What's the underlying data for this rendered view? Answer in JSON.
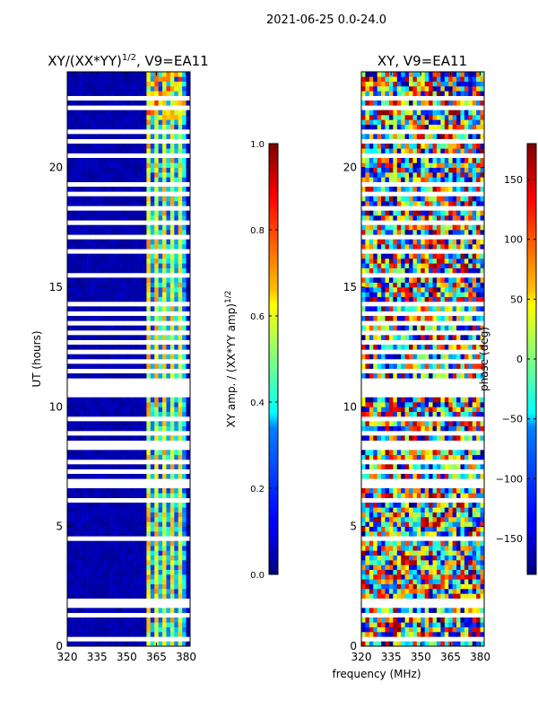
{
  "figure": {
    "suptitle": "2021-06-25 0.0-24.0",
    "shared_xlabel": "frequency (MHz)"
  },
  "chart_data": [
    {
      "type": "heatmap",
      "title": "XY/(XX*YY)",
      "title_superscript": "1/2",
      "title_suffix": ", V9=EA11",
      "xlabel": "",
      "ylabel": "UT (hours)",
      "xlim": [
        320,
        382
      ],
      "ylim": [
        0,
        24
      ],
      "x_ticks": [
        320,
        335,
        350,
        365,
        380
      ],
      "y_ticks": [
        0,
        5,
        10,
        15,
        20
      ],
      "colormap": "jet",
      "signal_band_mhz": [
        360,
        379
      ],
      "colorbar": {
        "label": "XY amp. / (XX*YY amp)",
        "label_superscript": "1/2",
        "vmin": 0.0,
        "vmax": 1.0,
        "ticks": [
          "0.0",
          "0.2",
          "0.4",
          "0.6",
          "0.8",
          "1.0"
        ]
      }
    },
    {
      "type": "heatmap",
      "title": "XY, V9=EA11",
      "xlabel": "frequency (MHz)",
      "ylabel": "",
      "xlim": [
        320,
        382
      ],
      "ylim": [
        0,
        24
      ],
      "x_ticks": [
        320,
        335,
        350,
        365,
        380
      ],
      "y_ticks": [
        0,
        5,
        10,
        15,
        20
      ],
      "colormap": "jet",
      "colorbar": {
        "label": "phase (deg)",
        "vmin": -180,
        "vmax": 180,
        "ticks": [
          "−150",
          "−100",
          "−50",
          "0",
          "50",
          "100",
          "150"
        ]
      }
    }
  ],
  "colors": {
    "axis": "#000000",
    "background": "#ffffff",
    "jet_low": "#00007f",
    "jet_high": "#7f0000"
  }
}
